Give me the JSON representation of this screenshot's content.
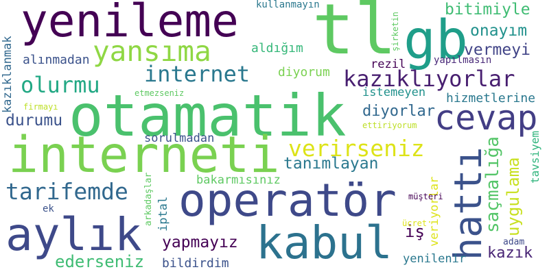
{
  "words": [
    {
      "text": "yenileme",
      "color": "#440154"
    },
    {
      "text": "tl",
      "color": "#5ec962"
    },
    {
      "text": "gb",
      "color": "#1f9e89"
    },
    {
      "text": "bitimiyle",
      "color": "#3fbc73"
    },
    {
      "text": "onayım",
      "color": "#21918c"
    },
    {
      "text": "vermeyi",
      "color": "#414487"
    },
    {
      "text": "kullanmayın",
      "color": "#2a788e"
    },
    {
      "text": "şirketin",
      "color": "#5ec962"
    },
    {
      "text": "yansıma",
      "color": "#8fd744"
    },
    {
      "text": "aldığım",
      "color": "#35b779"
    },
    {
      "text": "alınmadan",
      "color": "#3b528b"
    },
    {
      "text": "internet",
      "color": "#2a788e"
    },
    {
      "text": "rezil",
      "color": "#440154"
    },
    {
      "text": "yapılmasın",
      "color": "#482878"
    },
    {
      "text": "olurmu",
      "color": "#22a884"
    },
    {
      "text": "diyorum",
      "color": "#7ad151"
    },
    {
      "text": "kazıklıyorlar",
      "color": "#481f70"
    },
    {
      "text": "kazıklanmak",
      "color": "#31688e"
    },
    {
      "text": "etmezseniz",
      "color": "#5ec962"
    },
    {
      "text": "istemeyen",
      "color": "#21918c"
    },
    {
      "text": "hizmetlerine",
      "color": "#2a788e"
    },
    {
      "text": "otamatik",
      "color": "#4ac16d"
    },
    {
      "text": "firmayı",
      "color": "#bddf26"
    },
    {
      "text": "cevap",
      "color": "#433e85"
    },
    {
      "text": "diyorlar",
      "color": "#31688e"
    },
    {
      "text": "durumu",
      "color": "#3b528b"
    },
    {
      "text": "ettiriyorum",
      "color": "#bddf26"
    },
    {
      "text": "interneti",
      "color": "#7ad151"
    },
    {
      "text": "sorulmadan",
      "color": "#3b528b"
    },
    {
      "text": "verirseniz",
      "color": "#dde318"
    },
    {
      "text": "tavsiyem",
      "color": "#2fb47c"
    },
    {
      "text": "tanımlayan",
      "color": "#2a788e"
    },
    {
      "text": "hattı",
      "color": "#3b528b"
    },
    {
      "text": "saçmalığa",
      "color": "#54c568"
    },
    {
      "text": "uygulama",
      "color": "#c8e020"
    },
    {
      "text": "tarifemde",
      "color": "#31688e"
    },
    {
      "text": "bakarmısınız",
      "color": "#5ec962"
    },
    {
      "text": "veriyorlar",
      "color": "#dde318"
    },
    {
      "text": "müşteri",
      "color": "#440154"
    },
    {
      "text": "operatör",
      "color": "#3e4989"
    },
    {
      "text": "arkadaşlar",
      "color": "#5ec962"
    },
    {
      "text": "iptal",
      "color": "#2a788e"
    },
    {
      "text": "ek",
      "color": "#3b528b"
    },
    {
      "text": "aylık",
      "color": "#3e4989"
    },
    {
      "text": "kabul",
      "color": "#2c728e"
    },
    {
      "text": "iş",
      "color": "#440154"
    },
    {
      "text": "ücret",
      "color": "#dde318"
    },
    {
      "text": "yapmayız",
      "color": "#440154"
    },
    {
      "text": "ederseniz",
      "color": "#3fbc73"
    },
    {
      "text": "bildirdim",
      "color": "#3b528b"
    },
    {
      "text": "adam",
      "color": "#3e4989"
    },
    {
      "text": "kazık",
      "color": "#482475"
    },
    {
      "text": "yenilenir",
      "color": "#2a788e"
    }
  ]
}
